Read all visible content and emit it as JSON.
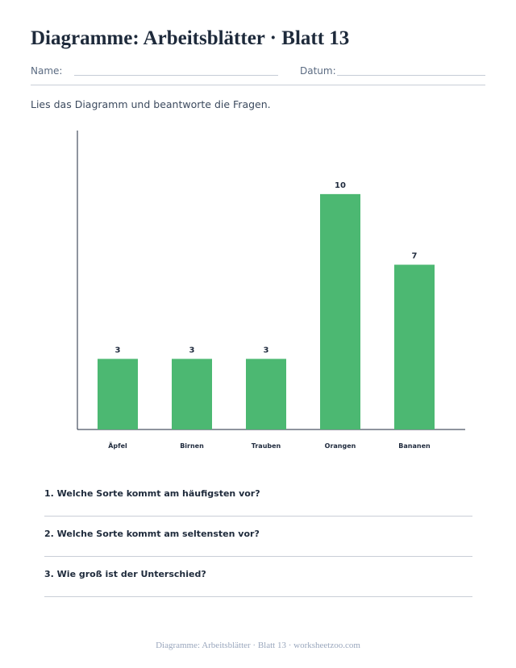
{
  "worksheet": {
    "title": "Diagramme: Arbeitsblätter · Blatt 13",
    "name_label": "Name:",
    "date_label": "Datum:",
    "instruction": "Lies das Diagramm und beantworte die Fragen."
  },
  "chart_data": {
    "type": "bar",
    "categories": [
      "Äpfel",
      "Birnen",
      "Trauben",
      "Orangen",
      "Bananen"
    ],
    "values": [
      3,
      3,
      3,
      10,
      7
    ],
    "title": "",
    "xlabel": "",
    "ylabel": "",
    "ylim": [
      0,
      12.7
    ],
    "grid": false,
    "data_labels": true,
    "colors": {
      "bar": "#4cb872"
    }
  },
  "questions": [
    {
      "text": "1. Welche Sorte kommt am häufigsten vor?"
    },
    {
      "text": "2. Welche Sorte kommt am seltensten vor?"
    },
    {
      "text": "3. Wie groß ist der Unterschied?"
    }
  ],
  "footer": {
    "text": "Diagramme: Arbeitsblätter · Blatt 13 · worksheetzoo.com"
  }
}
